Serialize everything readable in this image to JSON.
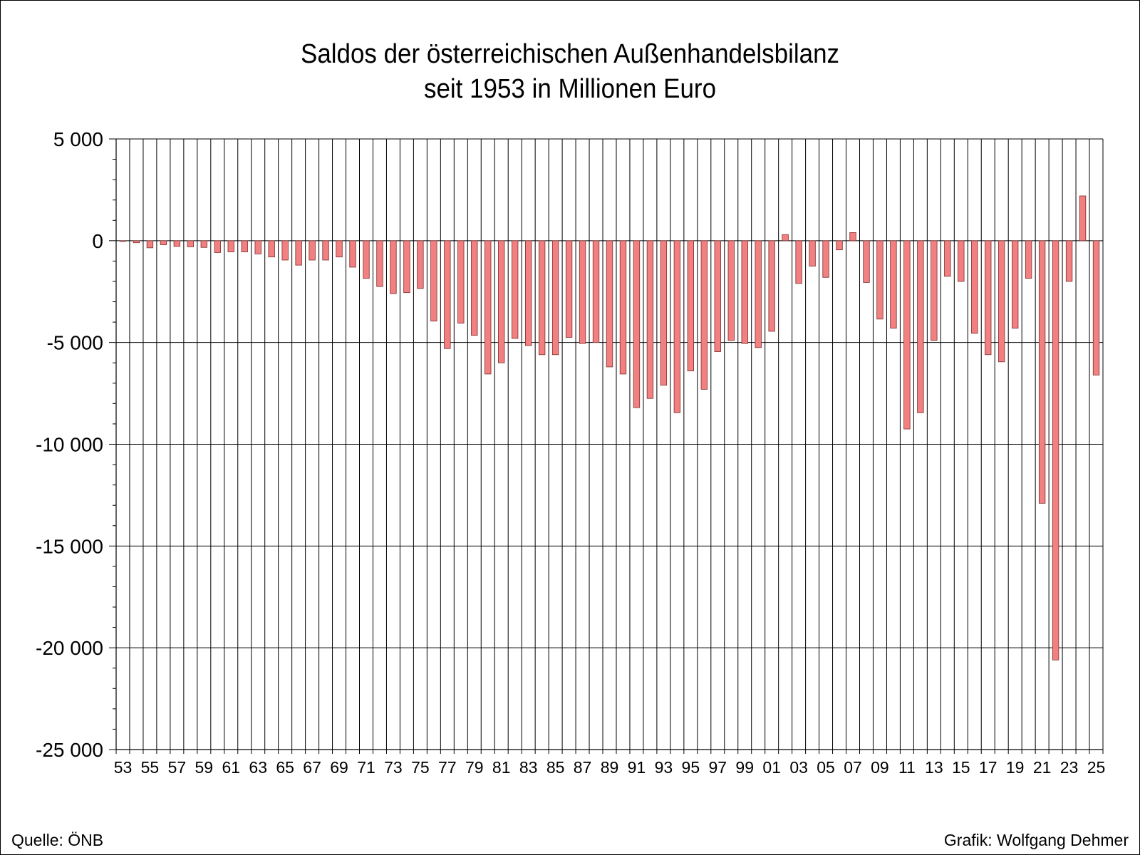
{
  "title_line1": "Saldos der österreichischen Außenhandelsbilanz",
  "title_line2": "seit 1953 in Millionen Euro",
  "source": "Quelle: ÖNB",
  "credit": "Grafik: Wolfgang Dehmer",
  "colors": {
    "bar_fill": "#f38080",
    "bar_stroke": "#7a2e2e",
    "grid": "#000000"
  },
  "chart_data": {
    "type": "bar",
    "title": "Saldos der österreichischen Außenhandelsbilanz seit 1953 in Millionen Euro",
    "xlabel": "",
    "ylabel": "",
    "ylim": [
      -25000,
      5000
    ],
    "y_ticks": [
      5000,
      0,
      -5000,
      -10000,
      -15000,
      -20000,
      -25000
    ],
    "y_tick_labels": [
      "5 000",
      "0",
      "-5 000",
      "-10 000",
      "-15 000",
      "-20 000",
      "-25 000"
    ],
    "grid": true,
    "categories": [
      "53",
      "54",
      "55",
      "56",
      "57",
      "58",
      "59",
      "60",
      "61",
      "62",
      "63",
      "64",
      "65",
      "66",
      "67",
      "68",
      "69",
      "70",
      "71",
      "72",
      "73",
      "74",
      "75",
      "76",
      "77",
      "78",
      "79",
      "80",
      "81",
      "82",
      "83",
      "84",
      "85",
      "86",
      "87",
      "88",
      "89",
      "90",
      "91",
      "92",
      "93",
      "94",
      "95",
      "96",
      "97",
      "98",
      "99",
      "00",
      "01",
      "02",
      "03",
      "04",
      "05",
      "06",
      "07",
      "08",
      "09",
      "10",
      "11",
      "12",
      "13",
      "14",
      "15",
      "16",
      "17",
      "18",
      "19",
      "20",
      "21",
      "22",
      "23",
      "24",
      "25"
    ],
    "x_tick_labels": [
      "53",
      "55",
      "57",
      "59",
      "61",
      "63",
      "65",
      "67",
      "69",
      "71",
      "73",
      "75",
      "77",
      "79",
      "81",
      "83",
      "85",
      "87",
      "89",
      "91",
      "93",
      "95",
      "97",
      "99",
      "01",
      "03",
      "05",
      "07",
      "09",
      "11",
      "13",
      "15",
      "17",
      "19",
      "21",
      "23",
      "25"
    ],
    "values": [
      -20,
      -100,
      -350,
      -200,
      -280,
      -300,
      -330,
      -580,
      -550,
      -550,
      -650,
      -800,
      -950,
      -1200,
      -950,
      -950,
      -800,
      -1300,
      -1850,
      -2250,
      -2600,
      -2550,
      -2350,
      -3950,
      -5300,
      -4050,
      -4650,
      -6550,
      -6000,
      -4800,
      -5150,
      -5600,
      -5600,
      -4750,
      -5050,
      -5000,
      -6200,
      -6550,
      -8200,
      -7750,
      -7100,
      -8450,
      -6400,
      -7300,
      -5450,
      -4900,
      -5050,
      -5250,
      -4450,
      300,
      -2100,
      -1250,
      -1800,
      -450,
      400,
      -2050,
      -3850,
      -4300,
      -9250,
      -8450,
      -4900,
      -1750,
      -2000,
      -4550,
      -5600,
      -5950,
      -4300,
      -1850,
      -12900,
      -20600,
      -2000,
      2200,
      -6600
    ]
  }
}
